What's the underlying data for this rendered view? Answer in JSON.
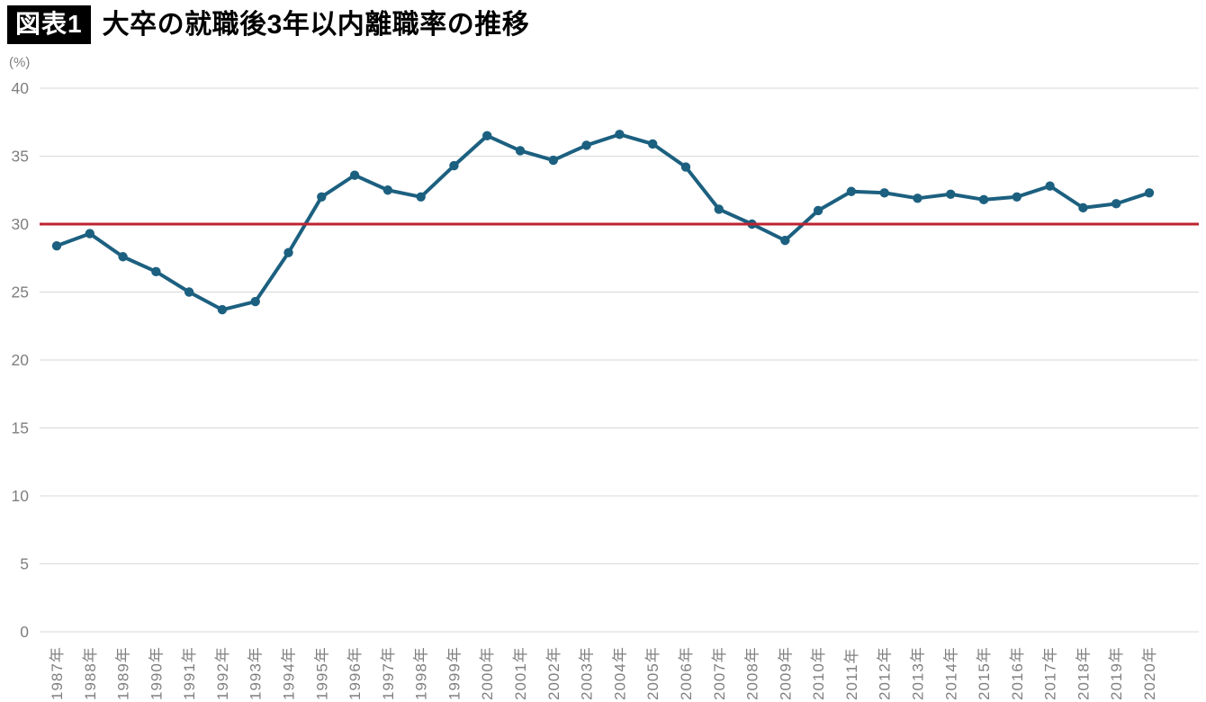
{
  "figure": {
    "badge": "図表1",
    "title": "大卒の就職後3年以内離職率の推移"
  },
  "chart_data": {
    "type": "line",
    "title": "大卒の就職後3年以内離職率の推移",
    "unit_label": "(%)",
    "categories": [
      "1987年",
      "1988年",
      "1989年",
      "1990年",
      "1991年",
      "1992年",
      "1993年",
      "1994年",
      "1995年",
      "1996年",
      "1997年",
      "1998年",
      "1999年",
      "2000年",
      "2001年",
      "2002年",
      "2003年",
      "2004年",
      "2005年",
      "2006年",
      "2007年",
      "2008年",
      "2009年",
      "2010年",
      "2011年",
      "2012年",
      "2013年",
      "2014年",
      "2015年",
      "2016年",
      "2017年",
      "2018年",
      "2019年",
      "2020年"
    ],
    "series": [
      {
        "name": "大卒の就職後3年以内離職率",
        "color": "#1c6080",
        "values": [
          28.4,
          29.3,
          27.6,
          26.5,
          25.0,
          23.7,
          24.3,
          27.9,
          32.0,
          33.6,
          32.5,
          32.0,
          34.3,
          36.5,
          35.4,
          34.7,
          35.8,
          36.6,
          35.9,
          34.2,
          31.1,
          30.0,
          28.8,
          31.0,
          32.4,
          32.3,
          31.9,
          32.2,
          31.8,
          32.0,
          32.8,
          31.2,
          31.5,
          32.3
        ]
      }
    ],
    "reference_line": {
      "value": 30,
      "color": "#bf2330"
    },
    "ylim": [
      0,
      40
    ],
    "yticks": [
      40,
      35,
      30,
      25,
      20,
      15,
      10,
      5,
      0
    ],
    "grid": true,
    "legend": "none",
    "colors": {
      "grid": "#d9d9d9",
      "tick_labels": "#7f7f7f",
      "badge_bg": "#000000",
      "badge_text": "#ffffff",
      "title_text": "#000000"
    }
  }
}
